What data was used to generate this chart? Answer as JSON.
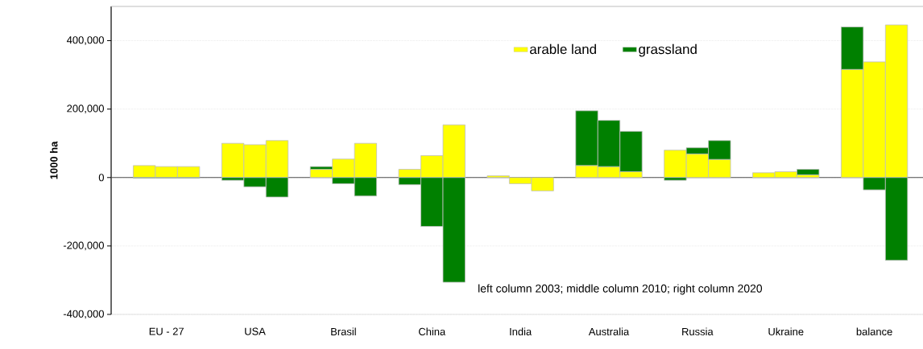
{
  "chart_data": {
    "type": "bar",
    "stacked": true,
    "ylabel": "1000 ha",
    "categories": [
      null,
      "EU - 27",
      null,
      null,
      "USA",
      null,
      null,
      "Brasil",
      null,
      null,
      "China",
      null,
      null,
      "India",
      null,
      null,
      "Australia",
      null,
      null,
      "Russia",
      null,
      null,
      "Ukraine",
      null,
      null,
      "balance",
      null
    ],
    "series": [
      {
        "name": "arable land",
        "color": "#ffff00",
        "values": [
          35000,
          32000,
          32000,
          100000,
          96000,
          108000,
          24000,
          54000,
          100000,
          24000,
          64000,
          154000,
          5000,
          -18000,
          -39000,
          35000,
          32000,
          17000,
          80000,
          69000,
          53000,
          14000,
          17000,
          8000,
          316000,
          338000,
          446000
        ]
      },
      {
        "name": "grassland",
        "color": "#008000",
        "values": [
          -2000,
          -2000,
          -2000,
          -8000,
          -27000,
          -57000,
          8000,
          -18000,
          -54000,
          -21000,
          -143000,
          -306000,
          0,
          0,
          0,
          160000,
          135000,
          118000,
          -8000,
          18000,
          55000,
          0,
          0,
          16000,
          124000,
          -36000,
          -242000
        ]
      }
    ],
    "ylim": [
      -400000,
      500000
    ],
    "yticks": [
      {
        "value": -400000,
        "label": "-400,000"
      },
      {
        "value": -200000,
        "label": "-200,000"
      },
      0,
      {
        "value": 200000,
        "label": "200,000"
      },
      {
        "value": 400000,
        "label": "400,000"
      }
    ],
    "grid": "y",
    "legend": "top",
    "annotations": [
      "left column 2003; middle column 2010; right column 2020"
    ]
  }
}
